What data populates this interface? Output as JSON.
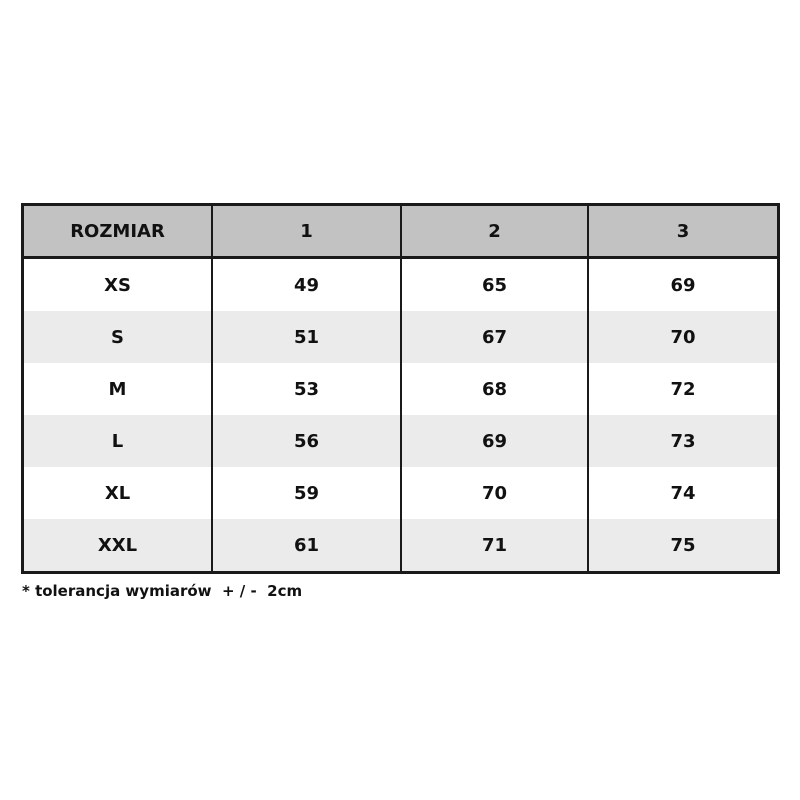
{
  "table": {
    "headers": [
      "ROZMIAR",
      "1",
      "2",
      "3"
    ],
    "rows": [
      [
        "XS",
        "49",
        "65",
        "69"
      ],
      [
        "S",
        "51",
        "67",
        "70"
      ],
      [
        "M",
        "53",
        "68",
        "72"
      ],
      [
        "L",
        "56",
        "69",
        "73"
      ],
      [
        "XL",
        "59",
        "70",
        "74"
      ],
      [
        "XXL",
        "61",
        "71",
        "75"
      ]
    ]
  },
  "note": "* tolerancja wymiarów  + / -  2cm",
  "colors": {
    "header_bg": "#c2c2c2",
    "stripe_bg": "#ebebeb",
    "border": "#1a1a1a"
  }
}
